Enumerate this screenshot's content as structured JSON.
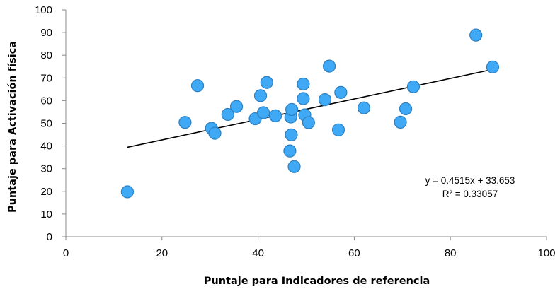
{
  "chart_data": {
    "type": "scatter",
    "title": "",
    "xlabel": "Puntaje para Indicadores de referencia",
    "ylabel": "Puntaje para Activación física",
    "xlim": [
      0,
      100
    ],
    "ylim": [
      0,
      100
    ],
    "x_ticks": [
      "0",
      "20",
      "40",
      "60",
      "80",
      "100"
    ],
    "y_ticks": [
      "0",
      "10",
      "20",
      "30",
      "40",
      "50",
      "60",
      "70",
      "80",
      "90",
      "100"
    ],
    "grid": false,
    "legend": "none",
    "point_color": "#3fa9f5",
    "point_stroke": "#2b7fc0",
    "points": [
      {
        "x": 12.8,
        "y": 19.8
      },
      {
        "x": 24.8,
        "y": 50.4
      },
      {
        "x": 27.4,
        "y": 66.6
      },
      {
        "x": 30.3,
        "y": 47.8
      },
      {
        "x": 31.0,
        "y": 45.6
      },
      {
        "x": 33.7,
        "y": 53.9
      },
      {
        "x": 35.5,
        "y": 57.4
      },
      {
        "x": 39.4,
        "y": 52.0
      },
      {
        "x": 40.5,
        "y": 62.2
      },
      {
        "x": 41.1,
        "y": 54.7
      },
      {
        "x": 41.8,
        "y": 68.0
      },
      {
        "x": 43.6,
        "y": 53.3
      },
      {
        "x": 46.6,
        "y": 37.8
      },
      {
        "x": 46.9,
        "y": 44.9
      },
      {
        "x": 46.8,
        "y": 52.8
      },
      {
        "x": 47.0,
        "y": 56.1
      },
      {
        "x": 47.5,
        "y": 30.9
      },
      {
        "x": 49.4,
        "y": 67.3
      },
      {
        "x": 49.4,
        "y": 60.9
      },
      {
        "x": 49.7,
        "y": 53.7
      },
      {
        "x": 50.5,
        "y": 50.3
      },
      {
        "x": 53.9,
        "y": 60.4
      },
      {
        "x": 54.8,
        "y": 75.2
      },
      {
        "x": 56.7,
        "y": 47.1
      },
      {
        "x": 57.2,
        "y": 63.6
      },
      {
        "x": 62.0,
        "y": 56.8
      },
      {
        "x": 69.6,
        "y": 50.5
      },
      {
        "x": 70.7,
        "y": 56.4
      },
      {
        "x": 72.3,
        "y": 66.1
      },
      {
        "x": 85.3,
        "y": 88.9
      },
      {
        "x": 88.8,
        "y": 74.8
      }
    ],
    "trendline": {
      "type": "linear",
      "slope": 0.4515,
      "intercept": 33.653,
      "x_range": [
        12.8,
        88.8
      ],
      "equation_text": "y = 0.4515x + 33.653",
      "r2_text": "R² = 0.33057"
    }
  }
}
